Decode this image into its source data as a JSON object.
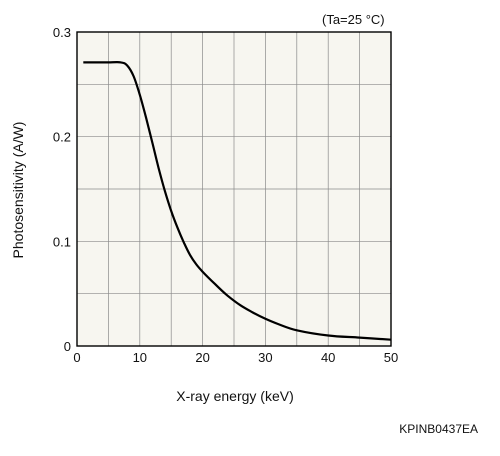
{
  "chart_data": {
    "type": "line",
    "title": "",
    "condition": "(Ta=25 °C)",
    "xlabel": "X-ray energy (keV)",
    "ylabel": "Photosensitivity (A/W)",
    "xlim": [
      0,
      50
    ],
    "ylim": [
      0,
      0.3
    ],
    "x_ticks": [
      0,
      10,
      20,
      30,
      40,
      50
    ],
    "y_ticks": [
      0,
      0.1,
      0.2,
      0.3
    ],
    "x_tick_labels": [
      "0",
      "10",
      "20",
      "30",
      "40",
      "50"
    ],
    "y_tick_labels": [
      "0",
      "0.1",
      "0.2",
      "0.3"
    ],
    "grid": true,
    "legend": "none",
    "series": [
      {
        "color": "#000000",
        "x": [
          1,
          3,
          5,
          7,
          8,
          9,
          10,
          11,
          12,
          13,
          14,
          15,
          16,
          17,
          18,
          19,
          20,
          22,
          24,
          26,
          28,
          30,
          32,
          35,
          40,
          45,
          50
        ],
        "y": [
          0.271,
          0.271,
          0.271,
          0.271,
          0.268,
          0.258,
          0.24,
          0.218,
          0.194,
          0.17,
          0.148,
          0.129,
          0.113,
          0.099,
          0.087,
          0.078,
          0.071,
          0.059,
          0.048,
          0.039,
          0.032,
          0.026,
          0.021,
          0.015,
          0.01,
          0.008,
          0.006
        ]
      }
    ]
  },
  "figure_code": "KPINB0437EA",
  "colors": {
    "plot_bg": "#f7f6f0",
    "grid": "#8a8a8a",
    "axis": "#000000",
    "curve": "#000000"
  }
}
